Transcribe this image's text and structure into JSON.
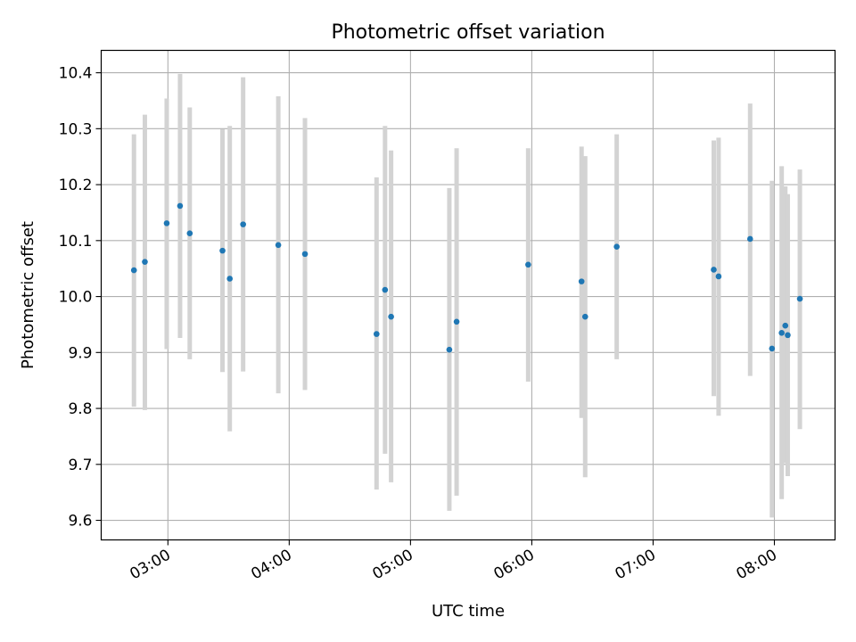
{
  "chart_data": {
    "type": "scatter",
    "title": "Photometric offset variation",
    "xlabel": "UTC time",
    "ylabel": "Photometric offset",
    "xlim": [
      2.45,
      8.5
    ],
    "ylim": [
      9.565,
      10.44
    ],
    "xticks": [
      3,
      4,
      5,
      6,
      7,
      8
    ],
    "xtick_labels": [
      "03:00",
      "04:00",
      "05:00",
      "06:00",
      "07:00",
      "08:00"
    ],
    "yticks": [
      9.6,
      9.7,
      9.8,
      9.9,
      10.0,
      10.1,
      10.2,
      10.3,
      10.4
    ],
    "ytick_labels": [
      "9.6",
      "9.7",
      "9.8",
      "9.9",
      "10.0",
      "10.1",
      "10.2",
      "10.3",
      "10.4"
    ],
    "grid": true,
    "point_color": "#1f77b4",
    "errorbar_color": "#d3d3d3",
    "x_units": "hours UTC",
    "points": [
      {
        "x": 2.72,
        "y": 10.047,
        "low": 9.803,
        "high": 10.29
      },
      {
        "x": 2.81,
        "y": 10.062,
        "low": 9.797,
        "high": 10.325
      },
      {
        "x": 2.99,
        "y": 10.131,
        "low": 9.906,
        "high": 10.354
      },
      {
        "x": 3.1,
        "y": 10.162,
        "low": 9.926,
        "high": 10.398
      },
      {
        "x": 3.18,
        "y": 10.113,
        "low": 9.888,
        "high": 10.338
      },
      {
        "x": 3.45,
        "y": 10.082,
        "low": 9.865,
        "high": 10.299
      },
      {
        "x": 3.51,
        "y": 10.032,
        "low": 9.759,
        "high": 10.305
      },
      {
        "x": 3.62,
        "y": 10.129,
        "low": 9.866,
        "high": 10.392
      },
      {
        "x": 3.91,
        "y": 10.092,
        "low": 9.827,
        "high": 10.358
      },
      {
        "x": 4.13,
        "y": 10.076,
        "low": 9.833,
        "high": 10.319
      },
      {
        "x": 4.72,
        "y": 9.933,
        "low": 9.655,
        "high": 10.213
      },
      {
        "x": 4.79,
        "y": 10.012,
        "low": 9.719,
        "high": 10.305
      },
      {
        "x": 4.84,
        "y": 9.964,
        "low": 9.668,
        "high": 10.261
      },
      {
        "x": 5.32,
        "y": 9.905,
        "low": 9.617,
        "high": 10.194
      },
      {
        "x": 5.38,
        "y": 9.955,
        "low": 9.644,
        "high": 10.265
      },
      {
        "x": 5.97,
        "y": 10.057,
        "low": 9.848,
        "high": 10.265
      },
      {
        "x": 6.41,
        "y": 10.027,
        "low": 9.783,
        "high": 10.268
      },
      {
        "x": 6.44,
        "y": 9.964,
        "low": 9.677,
        "high": 10.251
      },
      {
        "x": 6.7,
        "y": 10.089,
        "low": 9.888,
        "high": 10.29
      },
      {
        "x": 7.5,
        "y": 10.048,
        "low": 9.822,
        "high": 10.279
      },
      {
        "x": 7.54,
        "y": 10.036,
        "low": 9.787,
        "high": 10.284
      },
      {
        "x": 7.8,
        "y": 10.103,
        "low": 9.858,
        "high": 10.345
      },
      {
        "x": 7.98,
        "y": 9.907,
        "low": 9.605,
        "high": 10.207
      },
      {
        "x": 8.06,
        "y": 9.935,
        "low": 9.638,
        "high": 10.233
      },
      {
        "x": 8.09,
        "y": 9.948,
        "low": 9.702,
        "high": 10.197
      },
      {
        "x": 8.11,
        "y": 9.931,
        "low": 9.679,
        "high": 10.183
      },
      {
        "x": 8.21,
        "y": 9.996,
        "low": 9.763,
        "high": 10.227
      }
    ]
  }
}
